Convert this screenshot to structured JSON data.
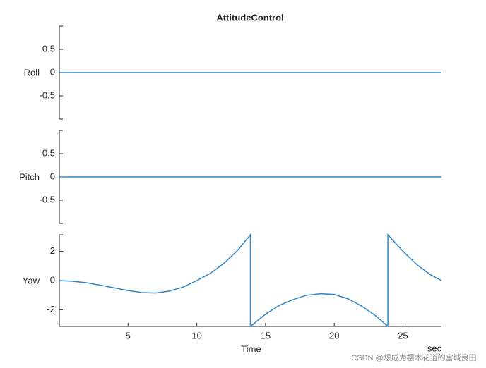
{
  "chart_data": [
    {
      "type": "line",
      "title": "AttitudeControl",
      "ylabel": "Roll",
      "color": "#2f86c8",
      "x": [
        0,
        27.8
      ],
      "values": [
        0,
        0
      ],
      "xlim": [
        0,
        27.8
      ],
      "ylim": [
        -1,
        1
      ],
      "yticks": [
        -0.5,
        0,
        0.5
      ]
    },
    {
      "type": "line",
      "ylabel": "Pitch",
      "color": "#2f86c8",
      "x": [
        0,
        27.8
      ],
      "values": [
        0,
        0
      ],
      "xlim": [
        0,
        27.8
      ],
      "ylim": [
        -1,
        1
      ],
      "yticks": [
        -0.5,
        0,
        0.5
      ]
    },
    {
      "type": "line",
      "ylabel": "Yaw",
      "xlabel": "Time",
      "x_unit_label": "sec",
      "color": "#2f86c8",
      "x": [
        0,
        1,
        2,
        3,
        4,
        5,
        6,
        7,
        8,
        9,
        10,
        11,
        12,
        13,
        13.9,
        13.9,
        15,
        16,
        17,
        18,
        19,
        20,
        21,
        22,
        23,
        23.9,
        23.9,
        25,
        26,
        27,
        27.8
      ],
      "values": [
        0,
        -0.05,
        -0.15,
        -0.32,
        -0.5,
        -0.68,
        -0.82,
        -0.85,
        -0.72,
        -0.45,
        0,
        0.5,
        1.2,
        2.1,
        3.14,
        -3.14,
        -2.3,
        -1.7,
        -1.3,
        -1.0,
        -0.9,
        -0.95,
        -1.25,
        -1.75,
        -2.4,
        -3.14,
        3.14,
        2.0,
        1.1,
        0.4,
        0
      ],
      "xlim": [
        0,
        27.8
      ],
      "ylim": [
        -3.14,
        3.14
      ],
      "yticks": [
        -2,
        0,
        2
      ],
      "xticks": [
        5,
        10,
        15,
        20,
        25
      ]
    }
  ],
  "watermark": "CSDN @想成为樱木花道的宫城良田"
}
